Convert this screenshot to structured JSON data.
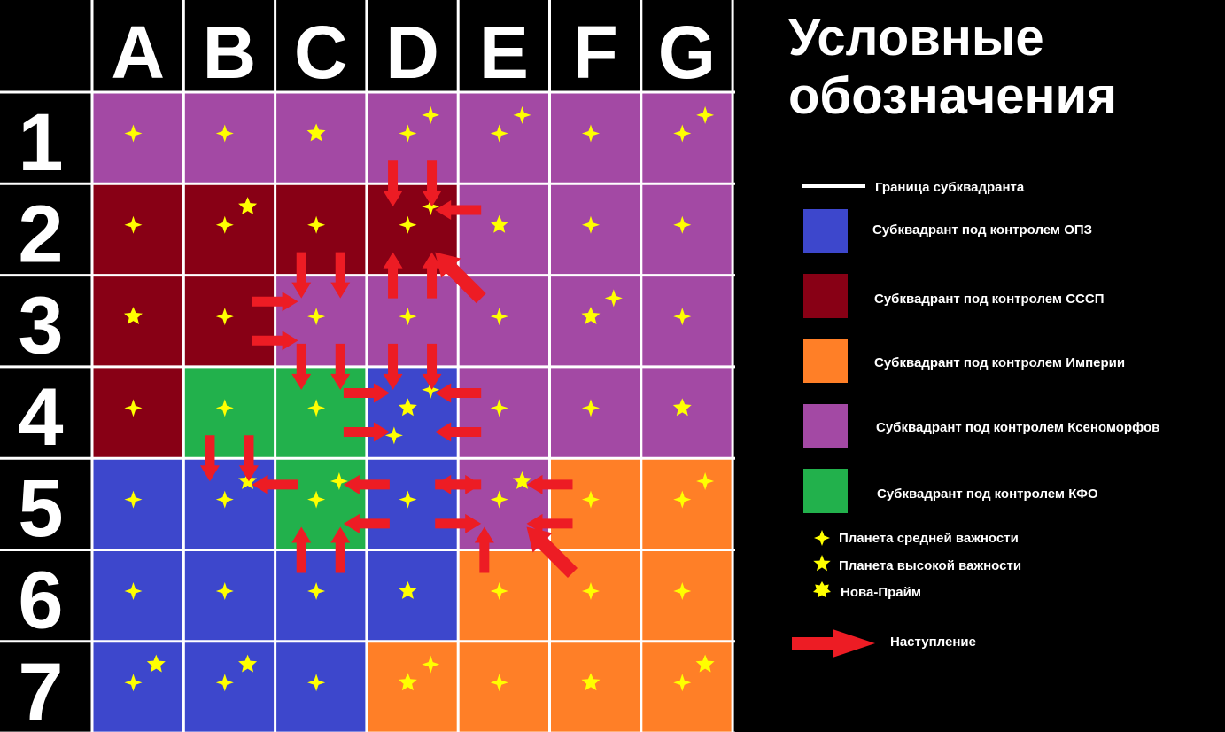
{
  "columns": [
    "A",
    "B",
    "C",
    "D",
    "E",
    "F",
    "G"
  ],
  "rows": [
    "1",
    "2",
    "3",
    "4",
    "5",
    "6",
    "7"
  ],
  "colors": {
    "opz": "#3d47cc",
    "sssp": "#880015",
    "empire": "#ff7f27",
    "xeno": "#a349a4",
    "kfo": "#22b14c",
    "planet": "#ffff00",
    "arrow": "#ed1c24",
    "border": "#ffffff"
  },
  "grid": [
    [
      "xeno",
      "xeno",
      "xeno",
      "xeno",
      "xeno",
      "xeno",
      "xeno"
    ],
    [
      "sssp",
      "sssp",
      "sssp",
      "sssp",
      "xeno",
      "xeno",
      "xeno"
    ],
    [
      "sssp",
      "sssp",
      "xeno",
      "xeno",
      "xeno",
      "xeno",
      "xeno"
    ],
    [
      "sssp",
      "kfo",
      "kfo",
      "opz",
      "xeno",
      "xeno",
      "xeno"
    ],
    [
      "opz",
      "opz",
      "kfo",
      "opz",
      "xeno",
      "empire",
      "empire"
    ],
    [
      "opz",
      "opz",
      "opz",
      "opz",
      "empire",
      "empire",
      "empire"
    ],
    [
      "opz",
      "opz",
      "opz",
      "empire",
      "empire",
      "empire",
      "empire"
    ]
  ],
  "planets": [
    {
      "cell": "A1",
      "type": "medium"
    },
    {
      "cell": "B1",
      "type": "medium"
    },
    {
      "cell": "C1",
      "type": "high"
    },
    {
      "cell": "D1",
      "type": "medium"
    },
    {
      "cell": "D1",
      "type": "medium"
    },
    {
      "cell": "E1",
      "type": "medium"
    },
    {
      "cell": "E1",
      "type": "medium"
    },
    {
      "cell": "F1",
      "type": "medium"
    },
    {
      "cell": "G1",
      "type": "medium"
    },
    {
      "cell": "G1",
      "type": "medium"
    },
    {
      "cell": "A2",
      "type": "medium"
    },
    {
      "cell": "B2",
      "type": "medium"
    },
    {
      "cell": "B2",
      "type": "high"
    },
    {
      "cell": "C2",
      "type": "medium"
    },
    {
      "cell": "D2",
      "type": "medium"
    },
    {
      "cell": "D2",
      "type": "medium"
    },
    {
      "cell": "E2",
      "type": "high"
    },
    {
      "cell": "F2",
      "type": "medium"
    },
    {
      "cell": "G2",
      "type": "medium"
    },
    {
      "cell": "A3",
      "type": "high"
    },
    {
      "cell": "B3",
      "type": "medium"
    },
    {
      "cell": "C3",
      "type": "medium"
    },
    {
      "cell": "D3",
      "type": "medium"
    },
    {
      "cell": "E3",
      "type": "medium"
    },
    {
      "cell": "F3",
      "type": "high"
    },
    {
      "cell": "F3",
      "type": "medium"
    },
    {
      "cell": "G3",
      "type": "medium"
    },
    {
      "cell": "A4",
      "type": "medium"
    },
    {
      "cell": "B4",
      "type": "medium"
    },
    {
      "cell": "C4",
      "type": "medium"
    },
    {
      "cell": "D4",
      "type": "high"
    },
    {
      "cell": "D4",
      "type": "medium"
    },
    {
      "cell": "D4",
      "type": "medium"
    },
    {
      "cell": "E4",
      "type": "medium"
    },
    {
      "cell": "F4",
      "type": "medium"
    },
    {
      "cell": "G4",
      "type": "high"
    },
    {
      "cell": "A5",
      "type": "medium"
    },
    {
      "cell": "B5",
      "type": "medium"
    },
    {
      "cell": "B5",
      "type": "high"
    },
    {
      "cell": "C5",
      "type": "medium"
    },
    {
      "cell": "C5",
      "type": "medium"
    },
    {
      "cell": "D5",
      "type": "medium"
    },
    {
      "cell": "E5",
      "type": "medium"
    },
    {
      "cell": "E5",
      "type": "high"
    },
    {
      "cell": "F5",
      "type": "medium"
    },
    {
      "cell": "G5",
      "type": "medium"
    },
    {
      "cell": "G5",
      "type": "medium"
    },
    {
      "cell": "A6",
      "type": "medium"
    },
    {
      "cell": "B6",
      "type": "medium"
    },
    {
      "cell": "C6",
      "type": "medium"
    },
    {
      "cell": "D6",
      "type": "high"
    },
    {
      "cell": "E6",
      "type": "medium"
    },
    {
      "cell": "F6",
      "type": "medium"
    },
    {
      "cell": "G6",
      "type": "medium"
    },
    {
      "cell": "A7",
      "type": "medium"
    },
    {
      "cell": "A7",
      "type": "high"
    },
    {
      "cell": "B7",
      "type": "medium"
    },
    {
      "cell": "B7",
      "type": "high"
    },
    {
      "cell": "C7",
      "type": "medium"
    },
    {
      "cell": "D7",
      "type": "high"
    },
    {
      "cell": "D7",
      "type": "medium"
    },
    {
      "cell": "E7",
      "type": "medium"
    },
    {
      "cell": "F7",
      "type": "high"
    },
    {
      "cell": "G7",
      "type": "medium"
    },
    {
      "cell": "G7",
      "type": "high"
    }
  ],
  "offensives": [
    {
      "from": "D1",
      "to": "D2"
    },
    {
      "from": "D1",
      "to": "D2"
    },
    {
      "from": "E2",
      "to": "D2"
    },
    {
      "from": "E3",
      "to": "D2"
    },
    {
      "from": "D3",
      "to": "D2"
    },
    {
      "from": "D3",
      "to": "D2"
    },
    {
      "from": "C2",
      "to": "C3"
    },
    {
      "from": "C2",
      "to": "C3"
    },
    {
      "from": "B3",
      "to": "C3"
    },
    {
      "from": "B3",
      "to": "C3"
    },
    {
      "from": "C3",
      "to": "C4"
    },
    {
      "from": "C3",
      "to": "C4"
    },
    {
      "from": "D3",
      "to": "D4"
    },
    {
      "from": "D3",
      "to": "D4"
    },
    {
      "from": "E4",
      "to": "D4"
    },
    {
      "from": "E4",
      "to": "D4"
    },
    {
      "from": "C4",
      "to": "D4"
    },
    {
      "from": "C4",
      "to": "D4"
    },
    {
      "from": "B4",
      "to": "B5"
    },
    {
      "from": "B4",
      "to": "B5"
    },
    {
      "from": "C5",
      "to": "B5"
    },
    {
      "from": "D5",
      "to": "C5"
    },
    {
      "from": "D5",
      "to": "C5"
    },
    {
      "from": "C6",
      "to": "C5"
    },
    {
      "from": "C6",
      "to": "C5"
    },
    {
      "from": "D5",
      "to": "E5"
    },
    {
      "from": "D5",
      "to": "E5"
    },
    {
      "from": "F5",
      "to": "E5"
    },
    {
      "from": "F5",
      "to": "E5"
    },
    {
      "from": "E6",
      "to": "E5"
    },
    {
      "from": "F6",
      "to": "E5"
    },
    {
      "from": "E5",
      "to": "D5"
    }
  ],
  "legend": {
    "title_line1": "Условные",
    "title_line2": "обозначения",
    "border_label": "Граница субквадранта",
    "opz_label": "Субквадрант под контролем ОПЗ",
    "sssp_label": "Субквадрант под контролем СССП",
    "empire_label": "Субквадрант под контролем Империи",
    "xeno_label": "Субквадрант под контролем Ксеноморфов",
    "kfo_label": "Субквадрант под контролем КФО",
    "medium_label": "Планета средней важности",
    "high_label": "Планета высокой важности",
    "capital_label": "Нова-Прайм",
    "offensive_label": "Наступление"
  }
}
